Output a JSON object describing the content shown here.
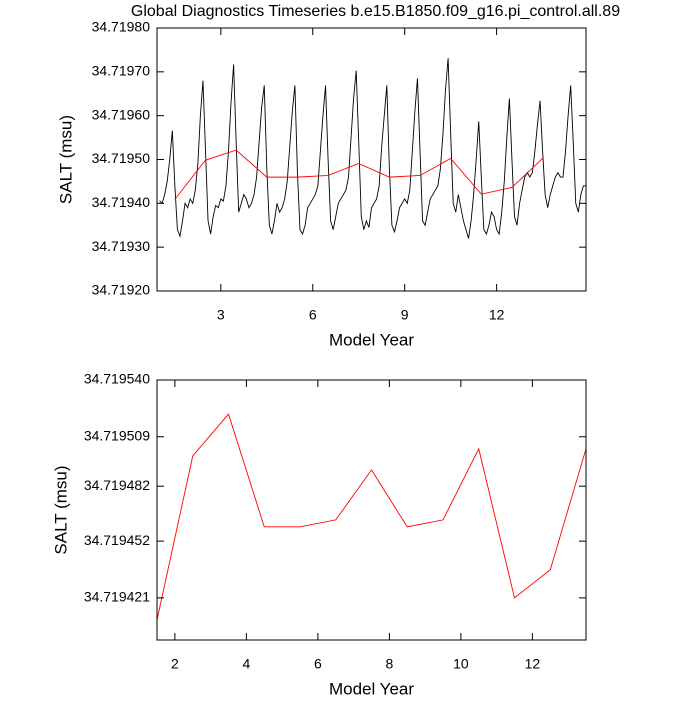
{
  "chart_data": [
    {
      "type": "line",
      "title": "Global Diagnostics Timeseries b.e15.B1850.f09_g16.pi_control.all.89",
      "xlabel": "Model Year",
      "ylabel": "SALT (msu)",
      "xlim": [
        0.917,
        14.917
      ],
      "xticks": [
        3,
        6,
        9,
        12
      ],
      "ylim": [
        34.7192,
        34.7198
      ],
      "yticks": [
        {
          "value": 34.7192,
          "label": "34.71920"
        },
        {
          "value": 34.7193,
          "label": "34.71930"
        },
        {
          "value": 34.7194,
          "label": "34.71940"
        },
        {
          "value": 34.7195,
          "label": "34.71950"
        },
        {
          "value": 34.7196,
          "label": "34.71960"
        },
        {
          "value": 34.7197,
          "label": "34.71970"
        },
        {
          "value": 34.7198,
          "label": "34.71980"
        }
      ],
      "series": [
        {
          "color": "#000000",
          "x": [
            1,
            1.083,
            1.167,
            1.25,
            1.333,
            1.417,
            1.5,
            1.583,
            1.667,
            1.75,
            1.833,
            1.917,
            2,
            2.083,
            2.167,
            2.25,
            2.333,
            2.417,
            2.5,
            2.583,
            2.667,
            2.75,
            2.833,
            2.917,
            3,
            3.083,
            3.167,
            3.25,
            3.333,
            3.417,
            3.5,
            3.583,
            3.667,
            3.75,
            3.833,
            3.917,
            4,
            4.083,
            4.167,
            4.25,
            4.333,
            4.417,
            4.5,
            4.583,
            4.667,
            4.75,
            4.833,
            4.917,
            5,
            5.083,
            5.167,
            5.25,
            5.333,
            5.417,
            5.5,
            5.583,
            5.667,
            5.75,
            5.833,
            5.917,
            6,
            6.083,
            6.167,
            6.25,
            6.333,
            6.417,
            6.5,
            6.583,
            6.667,
            6.75,
            6.833,
            6.917,
            7,
            7.083,
            7.167,
            7.25,
            7.333,
            7.417,
            7.5,
            7.583,
            7.667,
            7.75,
            7.833,
            7.917,
            8,
            8.083,
            8.167,
            8.25,
            8.333,
            8.417,
            8.5,
            8.583,
            8.667,
            8.75,
            8.833,
            8.917,
            9,
            9.083,
            9.167,
            9.25,
            9.333,
            9.417,
            9.5,
            9.583,
            9.667,
            9.75,
            9.833,
            9.917,
            10,
            10.083,
            10.167,
            10.25,
            10.333,
            10.417,
            10.5,
            10.583,
            10.667,
            10.75,
            10.833,
            10.917,
            11,
            11.083,
            11.167,
            11.25,
            11.333,
            11.417,
            11.5,
            11.583,
            11.667,
            11.75,
            11.833,
            11.917,
            12,
            12.083,
            12.167,
            12.25,
            12.333,
            12.417,
            12.5,
            12.583,
            12.667,
            12.75,
            12.833,
            12.917,
            13,
            13.083,
            13.167,
            13.25,
            13.333,
            13.417,
            13.5,
            13.583,
            13.667,
            13.75,
            13.833,
            13.917,
            14,
            14.083,
            14.167,
            14.25,
            14.333,
            14.417,
            14.5,
            14.583,
            14.667,
            14.75,
            14.833,
            14.917
          ],
          "values": [
            34.719406,
            34.7194,
            34.71942,
            34.71945,
            34.7195,
            34.719566,
            34.71944,
            34.71934,
            34.719325,
            34.71936,
            34.7194,
            34.71939,
            34.71941,
            34.7194,
            34.71943,
            34.71949,
            34.7196,
            34.71968,
            34.71952,
            34.71936,
            34.71933,
            34.71937,
            34.719395,
            34.71939,
            34.71941,
            34.719405,
            34.71944,
            34.71952,
            34.71963,
            34.719717,
            34.71954,
            34.71938,
            34.7194,
            34.71942,
            34.71941,
            34.71939,
            34.7194,
            34.71942,
            34.71946,
            34.71954,
            34.71962,
            34.719669,
            34.71948,
            34.71935,
            34.71933,
            34.71936,
            34.7194,
            34.71938,
            34.71939,
            34.71941,
            34.71945,
            34.71953,
            34.71961,
            34.719669,
            34.71947,
            34.71934,
            34.71933,
            34.71935,
            34.71939,
            34.7194,
            34.71941,
            34.71942,
            34.71944,
            34.71952,
            34.7196,
            34.719669,
            34.7195,
            34.71936,
            34.71934,
            34.71937,
            34.7194,
            34.71941,
            34.71942,
            34.71943,
            34.71946,
            34.71955,
            34.71964,
            34.719703,
            34.71954,
            34.71937,
            34.71934,
            34.71936,
            34.719345,
            34.71939,
            34.7194,
            34.71941,
            34.71944,
            34.71953,
            34.7196,
            34.719669,
            34.71948,
            34.71935,
            34.719335,
            34.71936,
            34.71939,
            34.7194,
            34.71941,
            34.7194,
            34.71943,
            34.71952,
            34.71961,
            34.719685,
            34.71952,
            34.71936,
            34.71935,
            34.71938,
            34.71941,
            34.71942,
            34.71943,
            34.71944,
            34.71948,
            34.71956,
            34.71966,
            34.719731,
            34.71956,
            34.7194,
            34.71938,
            34.71942,
            34.71939,
            34.71936,
            34.71934,
            34.71932,
            34.71936,
            34.71942,
            34.7195,
            34.719587,
            34.71946,
            34.71934,
            34.71933,
            34.71935,
            34.71938,
            34.71937,
            34.71934,
            34.71933,
            34.71938,
            34.71945,
            34.71955,
            34.719639,
            34.7195,
            34.71937,
            34.71935,
            34.7194,
            34.71943,
            34.71946,
            34.71947,
            34.71946,
            34.71947,
            34.71952,
            34.71958,
            34.719634,
            34.71952,
            34.71942,
            34.71939,
            34.71942,
            34.71944,
            34.71946,
            34.71947,
            34.71946,
            34.71946,
            34.71952,
            34.7196,
            34.719669,
            34.71954,
            34.7194,
            34.71938,
            34.71942,
            34.71944,
            34.71944
          ]
        },
        {
          "color": "#ff0000",
          "x": [
            1.5,
            2.5,
            3.5,
            4.5,
            5.5,
            6.5,
            7.5,
            8.5,
            9.5,
            10.5,
            11.5,
            12.5,
            13.5
          ],
          "values": [
            34.719409,
            34.7194985,
            34.7195214,
            34.7194598,
            34.7194598,
            34.7194636,
            34.7194909,
            34.7194598,
            34.7194636,
            34.7195024,
            34.719421,
            34.7194363,
            34.7195024
          ]
        }
      ]
    },
    {
      "type": "line",
      "xlabel": "Model Year",
      "ylabel": "SALT (msu)",
      "xlim": [
        1.5,
        13.5
      ],
      "xticks": [
        2,
        4,
        6,
        8,
        10,
        12
      ],
      "ylim": [
        34.719398,
        34.71954
      ],
      "yticks": [
        34.719421,
        34.719452,
        34.719482,
        34.719509,
        {
          "value": 34.71954,
          "label": "34.719540"
        }
      ],
      "series": [
        {
          "color": "#ff0000",
          "x": [
            1.5,
            2.5,
            3.5,
            4.5,
            5.5,
            6.5,
            7.5,
            8.5,
            9.5,
            10.5,
            11.5,
            12.5,
            13.5
          ],
          "values": [
            34.719409,
            34.7194985,
            34.7195214,
            34.7194598,
            34.7194598,
            34.7194636,
            34.7194909,
            34.7194598,
            34.7194636,
            34.7195024,
            34.719421,
            34.7194363,
            34.7195024
          ]
        }
      ]
    }
  ]
}
